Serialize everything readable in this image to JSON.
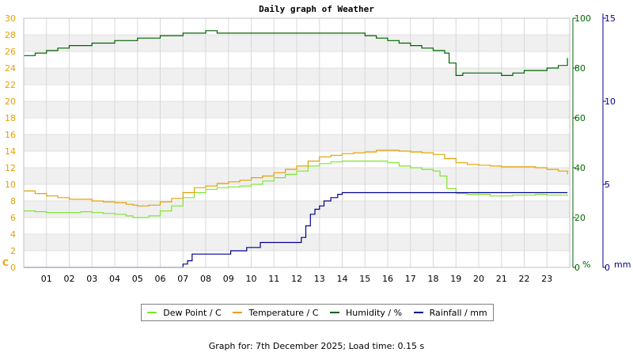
{
  "chart_data": {
    "type": "line",
    "title": "Daily graph of Weather",
    "x_ticks": [
      "01",
      "02",
      "03",
      "04",
      "05",
      "06",
      "07",
      "08",
      "09",
      "10",
      "11",
      "12",
      "13",
      "14",
      "15",
      "16",
      "17",
      "18",
      "19",
      "20",
      "21",
      "22",
      "23"
    ],
    "xlim": [
      0,
      24
    ],
    "axes": {
      "left": {
        "unit": "C",
        "ylim": [
          0,
          30
        ],
        "ticks": [
          0,
          2,
          4,
          6,
          8,
          10,
          12,
          14,
          16,
          18,
          20,
          22,
          24,
          26,
          28,
          30
        ],
        "color": "#e6a000"
      },
      "humidity": {
        "unit": "%",
        "ylim": [
          0,
          100
        ],
        "ticks": [
          0,
          20,
          40,
          60,
          80,
          100
        ],
        "color": "#006400"
      },
      "rain": {
        "unit": "mm",
        "ylim": [
          0,
          15
        ],
        "ticks": [
          0,
          5,
          10,
          15
        ],
        "color": "#00008b"
      }
    },
    "series": [
      {
        "name": "Dew Point / C",
        "axis": "left",
        "color": "#7ee62e",
        "points": [
          [
            0,
            6.8
          ],
          [
            0.5,
            6.7
          ],
          [
            1,
            6.6
          ],
          [
            1.5,
            6.6
          ],
          [
            2,
            6.6
          ],
          [
            2.5,
            6.7
          ],
          [
            3,
            6.6
          ],
          [
            3.5,
            6.5
          ],
          [
            4,
            6.4
          ],
          [
            4.5,
            6.2
          ],
          [
            4.8,
            6.0
          ],
          [
            5,
            6.0
          ],
          [
            5.5,
            6.2
          ],
          [
            6,
            6.8
          ],
          [
            6.5,
            7.4
          ],
          [
            7,
            8.4
          ],
          [
            7.5,
            9.0
          ],
          [
            8,
            9.4
          ],
          [
            8.5,
            9.6
          ],
          [
            9,
            9.7
          ],
          [
            9.5,
            9.8
          ],
          [
            10,
            10.0
          ],
          [
            10.5,
            10.4
          ],
          [
            11,
            10.8
          ],
          [
            11.5,
            11.2
          ],
          [
            12,
            11.6
          ],
          [
            12.5,
            12.2
          ],
          [
            13,
            12.5
          ],
          [
            13.5,
            12.7
          ],
          [
            14,
            12.8
          ],
          [
            14.5,
            12.8
          ],
          [
            15,
            12.8
          ],
          [
            15.5,
            12.8
          ],
          [
            16,
            12.6
          ],
          [
            16.5,
            12.2
          ],
          [
            17,
            12.0
          ],
          [
            17.5,
            11.8
          ],
          [
            18,
            11.6
          ],
          [
            18.3,
            11.0
          ],
          [
            18.6,
            9.5
          ],
          [
            19,
            8.9
          ],
          [
            19.5,
            8.8
          ],
          [
            20,
            8.8
          ],
          [
            20.5,
            8.6
          ],
          [
            21,
            8.6
          ],
          [
            21.5,
            8.7
          ],
          [
            22,
            8.7
          ],
          [
            22.5,
            8.8
          ],
          [
            23,
            8.7
          ],
          [
            23.5,
            8.7
          ],
          [
            23.9,
            8.6
          ]
        ]
      },
      {
        "name": "Temperature / C",
        "axis": "left",
        "color": "#e6a000",
        "points": [
          [
            0,
            9.2
          ],
          [
            0.5,
            8.9
          ],
          [
            1,
            8.6
          ],
          [
            1.5,
            8.4
          ],
          [
            2,
            8.2
          ],
          [
            2.5,
            8.2
          ],
          [
            3,
            8.0
          ],
          [
            3.5,
            7.9
          ],
          [
            4,
            7.8
          ],
          [
            4.5,
            7.6
          ],
          [
            4.8,
            7.5
          ],
          [
            5,
            7.4
          ],
          [
            5.5,
            7.5
          ],
          [
            6,
            7.9
          ],
          [
            6.5,
            8.3
          ],
          [
            7,
            9.0
          ],
          [
            7.5,
            9.6
          ],
          [
            8,
            9.8
          ],
          [
            8.5,
            10.1
          ],
          [
            9,
            10.3
          ],
          [
            9.5,
            10.5
          ],
          [
            10,
            10.8
          ],
          [
            10.5,
            11.0
          ],
          [
            11,
            11.4
          ],
          [
            11.5,
            11.8
          ],
          [
            12,
            12.2
          ],
          [
            12.5,
            12.8
          ],
          [
            13,
            13.3
          ],
          [
            13.5,
            13.5
          ],
          [
            14,
            13.7
          ],
          [
            14.5,
            13.8
          ],
          [
            15,
            13.9
          ],
          [
            15.5,
            14.1
          ],
          [
            16,
            14.1
          ],
          [
            16.5,
            14.0
          ],
          [
            17,
            13.9
          ],
          [
            17.5,
            13.8
          ],
          [
            18,
            13.6
          ],
          [
            18.5,
            13.1
          ],
          [
            19,
            12.6
          ],
          [
            19.5,
            12.4
          ],
          [
            20,
            12.3
          ],
          [
            20.5,
            12.2
          ],
          [
            21,
            12.1
          ],
          [
            21.5,
            12.1
          ],
          [
            22,
            12.1
          ],
          [
            22.5,
            12.0
          ],
          [
            23,
            11.8
          ],
          [
            23.5,
            11.6
          ],
          [
            23.9,
            11.2
          ]
        ]
      },
      {
        "name": "Humidity / %",
        "axis": "humidity",
        "color": "#006400",
        "points": [
          [
            0,
            85
          ],
          [
            0.5,
            86
          ],
          [
            1,
            87
          ],
          [
            1.5,
            88
          ],
          [
            2,
            89
          ],
          [
            2.5,
            89
          ],
          [
            3,
            90
          ],
          [
            3.5,
            90
          ],
          [
            4,
            91
          ],
          [
            4.5,
            91
          ],
          [
            5,
            92
          ],
          [
            5.5,
            92
          ],
          [
            6,
            93
          ],
          [
            6.5,
            93
          ],
          [
            7,
            94
          ],
          [
            7.5,
            94
          ],
          [
            8,
            95
          ],
          [
            8.5,
            94
          ],
          [
            9,
            94
          ],
          [
            9.5,
            94
          ],
          [
            10,
            94
          ],
          [
            11,
            94
          ],
          [
            12,
            94
          ],
          [
            12.5,
            94
          ],
          [
            13,
            94
          ],
          [
            14,
            94
          ],
          [
            14.5,
            94
          ],
          [
            15,
            93
          ],
          [
            15.5,
            92
          ],
          [
            16,
            91
          ],
          [
            16.5,
            90
          ],
          [
            17,
            89
          ],
          [
            17.5,
            88
          ],
          [
            18,
            87
          ],
          [
            18.5,
            86
          ],
          [
            18.7,
            82
          ],
          [
            19,
            77
          ],
          [
            19.3,
            78
          ],
          [
            19.5,
            78
          ],
          [
            20,
            78
          ],
          [
            20.5,
            78
          ],
          [
            21,
            77
          ],
          [
            21.5,
            78
          ],
          [
            22,
            79
          ],
          [
            22.5,
            79
          ],
          [
            23,
            80
          ],
          [
            23.5,
            81
          ],
          [
            23.9,
            84
          ]
        ]
      },
      {
        "name": "Rainfall / mm",
        "axis": "rain",
        "color": "#00008b",
        "points": [
          [
            0,
            0
          ],
          [
            6.9,
            0
          ],
          [
            7.0,
            0.2
          ],
          [
            7.2,
            0.4
          ],
          [
            7.4,
            0.8
          ],
          [
            7.5,
            0.8
          ],
          [
            9,
            0.8
          ],
          [
            9.1,
            1.0
          ],
          [
            9.7,
            1.0
          ],
          [
            9.8,
            1.2
          ],
          [
            10.3,
            1.2
          ],
          [
            10.4,
            1.5
          ],
          [
            12.0,
            1.5
          ],
          [
            12.2,
            1.8
          ],
          [
            12.4,
            2.5
          ],
          [
            12.6,
            3.2
          ],
          [
            12.8,
            3.5
          ],
          [
            13.0,
            3.7
          ],
          [
            13.2,
            4.0
          ],
          [
            13.5,
            4.2
          ],
          [
            13.8,
            4.4
          ],
          [
            14.0,
            4.5
          ],
          [
            14.5,
            4.5
          ],
          [
            23.9,
            4.5
          ]
        ]
      }
    ],
    "legend": [
      "Dew Point / C",
      "Temperature / C",
      "Humidity / %",
      "Rainfall / mm"
    ],
    "legend_position": "bottom",
    "grid": true
  },
  "footer": "Graph for: 7th December 2025; Load time: 0.15 s"
}
